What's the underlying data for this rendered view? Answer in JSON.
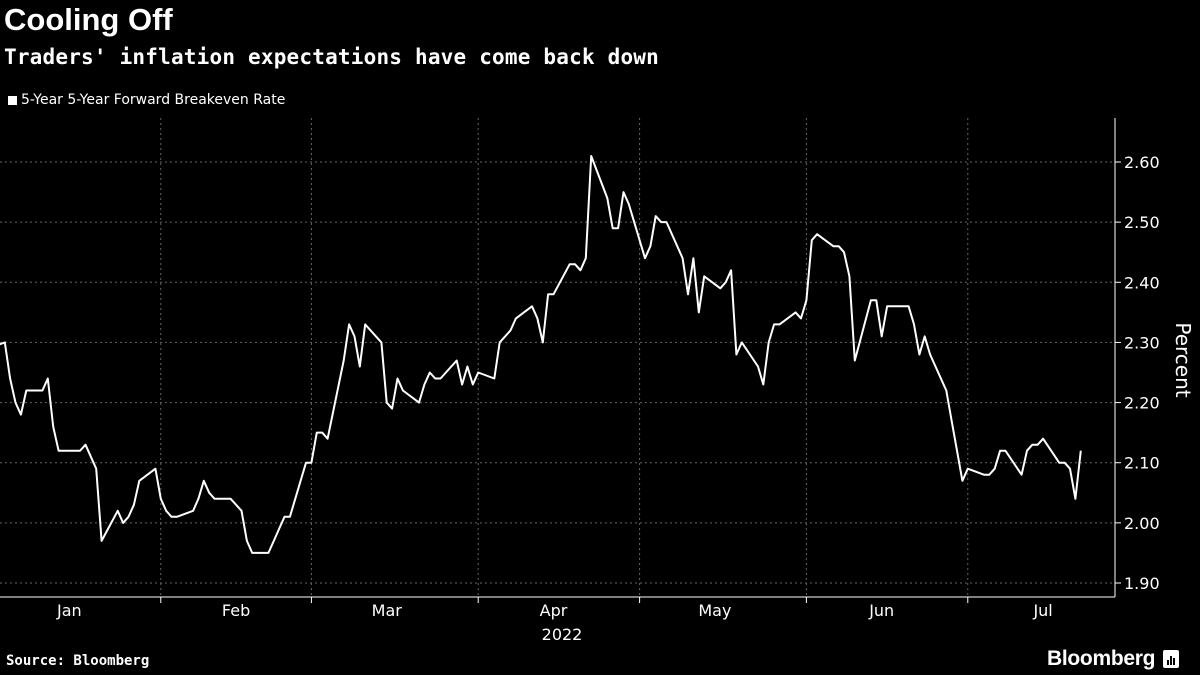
{
  "title": "Cooling Off",
  "subtitle": "Traders' inflation expectations have come back down",
  "source": "Source: Bloomberg",
  "brand": "Bloomberg",
  "chart_data": {
    "type": "line",
    "title": "Cooling Off",
    "subtitle": "Traders' inflation expectations have come back down",
    "ylabel": "Percent",
    "xlabel": "2022",
    "ylim": [
      1.9,
      2.65
    ],
    "yticks": [
      "1.90",
      "2.00",
      "2.10",
      "2.20",
      "2.30",
      "2.40",
      "2.50",
      "2.60"
    ],
    "xticks": [
      "Jan",
      "Feb",
      "Mar",
      "Apr",
      "May",
      "Jun",
      "Jul"
    ],
    "year_label": "2022",
    "grid": true,
    "y_axis_side": "right",
    "legend_placement": "top-left",
    "line_color": "#ffffff",
    "background": "#000000",
    "series": [
      {
        "name": "5-Year 5-Year Forward Breakeven Rate",
        "x": [
          "2021-12-31",
          "2022-01-03",
          "2022-01-04",
          "2022-01-05",
          "2022-01-06",
          "2022-01-07",
          "2022-01-10",
          "2022-01-11",
          "2022-01-12",
          "2022-01-13",
          "2022-01-14",
          "2022-01-17",
          "2022-01-18",
          "2022-01-19",
          "2022-01-20",
          "2022-01-21",
          "2022-01-24",
          "2022-01-25",
          "2022-01-26",
          "2022-01-27",
          "2022-01-28",
          "2022-01-31",
          "2022-02-01",
          "2022-02-02",
          "2022-02-03",
          "2022-02-04",
          "2022-02-07",
          "2022-02-08",
          "2022-02-09",
          "2022-02-10",
          "2022-02-11",
          "2022-02-14",
          "2022-02-15",
          "2022-02-16",
          "2022-02-17",
          "2022-02-18",
          "2022-02-21",
          "2022-02-22",
          "2022-02-23",
          "2022-02-24",
          "2022-02-25",
          "2022-02-28",
          "2022-03-01",
          "2022-03-02",
          "2022-03-03",
          "2022-03-04",
          "2022-03-07",
          "2022-03-08",
          "2022-03-09",
          "2022-03-10",
          "2022-03-11",
          "2022-03-14",
          "2022-03-15",
          "2022-03-16",
          "2022-03-17",
          "2022-03-18",
          "2022-03-21",
          "2022-03-22",
          "2022-03-23",
          "2022-03-24",
          "2022-03-25",
          "2022-03-28",
          "2022-03-29",
          "2022-03-30",
          "2022-03-31",
          "2022-04-01",
          "2022-04-04",
          "2022-04-05",
          "2022-04-06",
          "2022-04-07",
          "2022-04-08",
          "2022-04-11",
          "2022-04-12",
          "2022-04-13",
          "2022-04-14",
          "2022-04-15",
          "2022-04-18",
          "2022-04-19",
          "2022-04-20",
          "2022-04-21",
          "2022-04-22",
          "2022-04-25",
          "2022-04-26",
          "2022-04-27",
          "2022-04-28",
          "2022-04-29",
          "2022-05-02",
          "2022-05-03",
          "2022-05-04",
          "2022-05-05",
          "2022-05-06",
          "2022-05-09",
          "2022-05-10",
          "2022-05-11",
          "2022-05-12",
          "2022-05-13",
          "2022-05-16",
          "2022-05-17",
          "2022-05-18",
          "2022-05-19",
          "2022-05-20",
          "2022-05-23",
          "2022-05-24",
          "2022-05-25",
          "2022-05-26",
          "2022-05-27",
          "2022-05-30",
          "2022-05-31",
          "2022-06-01",
          "2022-06-02",
          "2022-06-03",
          "2022-06-06",
          "2022-06-07",
          "2022-06-08",
          "2022-06-09",
          "2022-06-10",
          "2022-06-13",
          "2022-06-14",
          "2022-06-15",
          "2022-06-16",
          "2022-06-17",
          "2022-06-20",
          "2022-06-21",
          "2022-06-22",
          "2022-06-23",
          "2022-06-24",
          "2022-06-27",
          "2022-06-28",
          "2022-06-29",
          "2022-06-30",
          "2022-07-01",
          "2022-07-04",
          "2022-07-05",
          "2022-07-06",
          "2022-07-07",
          "2022-07-08",
          "2022-07-11",
          "2022-07-12",
          "2022-07-13",
          "2022-07-14",
          "2022-07-15",
          "2022-07-18",
          "2022-07-19",
          "2022-07-20",
          "2022-07-21",
          "2022-07-22"
        ],
        "values": [
          2.29,
          2.3,
          2.24,
          2.2,
          2.18,
          2.22,
          2.22,
          2.24,
          2.16,
          2.12,
          2.12,
          2.12,
          2.13,
          2.11,
          2.09,
          1.97,
          2.02,
          2.0,
          2.01,
          2.03,
          2.07,
          2.09,
          2.04,
          2.02,
          2.01,
          2.01,
          2.02,
          2.04,
          2.07,
          2.05,
          2.04,
          2.04,
          2.03,
          2.02,
          1.97,
          1.95,
          1.95,
          1.97,
          1.99,
          2.01,
          2.01,
          2.1,
          2.1,
          2.15,
          2.15,
          2.14,
          2.27,
          2.33,
          2.31,
          2.26,
          2.33,
          2.3,
          2.2,
          2.19,
          2.24,
          2.22,
          2.2,
          2.23,
          2.25,
          2.24,
          2.24,
          2.27,
          2.23,
          2.26,
          2.23,
          2.25,
          2.24,
          2.3,
          2.31,
          2.32,
          2.34,
          2.36,
          2.34,
          2.3,
          2.38,
          2.38,
          2.43,
          2.43,
          2.42,
          2.44,
          2.61,
          2.54,
          2.49,
          2.49,
          2.55,
          2.53,
          2.44,
          2.46,
          2.51,
          2.5,
          2.5,
          2.44,
          2.38,
          2.44,
          2.35,
          2.41,
          2.39,
          2.4,
          2.42,
          2.28,
          2.3,
          2.26,
          2.23,
          2.3,
          2.33,
          2.33,
          2.35,
          2.34,
          2.37,
          2.47,
          2.48,
          2.46,
          2.46,
          2.45,
          2.41,
          2.27,
          2.37,
          2.37,
          2.31,
          2.36,
          2.36,
          2.36,
          2.33,
          2.28,
          2.31,
          2.28,
          2.22,
          2.17,
          2.12,
          2.07,
          2.09,
          2.08,
          2.08,
          2.09,
          2.12,
          2.12,
          2.08,
          2.12,
          2.13,
          2.13,
          2.14,
          2.1,
          2.1,
          2.09,
          2.04,
          2.12
        ]
      }
    ]
  }
}
